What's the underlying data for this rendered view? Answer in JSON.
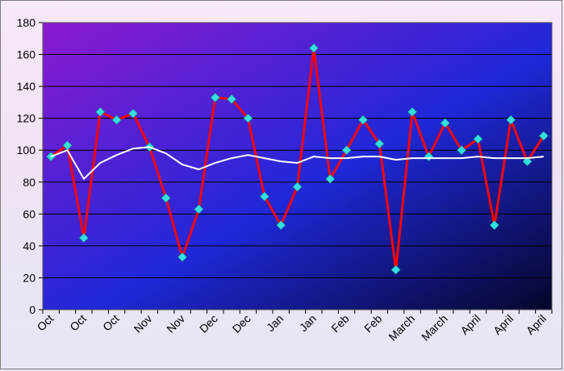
{
  "chart_data": {
    "type": "line",
    "x": [
      "Oct",
      "Oct",
      "Oct",
      "Oct",
      "Oct",
      "Nov",
      "Nov",
      "Nov",
      "Nov",
      "Dec",
      "Dec",
      "Dec",
      "Dec",
      "Jan",
      "Jan",
      "Jan",
      "Jan",
      "Feb",
      "Feb",
      "Feb",
      "Feb",
      "March",
      "March",
      "March",
      "March",
      "April",
      "April",
      "April",
      "April",
      "April",
      "April"
    ],
    "x_tick_labels": [
      "Oct",
      "Oct",
      "Oct",
      "Nov",
      "Nov",
      "Dec",
      "Dec",
      "Jan",
      "Jan",
      "Feb",
      "Feb",
      "March",
      "March",
      "April",
      "April",
      "April"
    ],
    "series": [
      {
        "values": [
          96,
          103,
          45,
          124,
          119,
          123,
          102,
          70,
          33,
          63,
          133,
          132,
          120,
          71,
          53,
          77,
          164,
          82,
          100,
          119,
          104,
          25,
          124,
          96,
          117,
          100,
          107,
          53,
          119,
          93,
          109
        ],
        "color": "#ff0000",
        "marker_color": "#33e0e0"
      },
      {
        "values": [
          96,
          100,
          82,
          92,
          97,
          101,
          102,
          98,
          91,
          88,
          92,
          95,
          97,
          95,
          93,
          92,
          96,
          95,
          95,
          96,
          96,
          94,
          95,
          95,
          95,
          95,
          96,
          95,
          95,
          95,
          96
        ],
        "color": "#ffffff"
      }
    ],
    "ylim": [
      0,
      180
    ],
    "yticks": [
      0,
      20,
      40,
      60,
      80,
      100,
      120,
      140,
      160,
      180
    ],
    "grid": true,
    "plot_colors": {
      "gradient_top_left": "#8c1ad0",
      "gradient_middle": "#1f28d8",
      "gradient_bottom_right": "#06062a",
      "gridline": "#000000"
    }
  }
}
